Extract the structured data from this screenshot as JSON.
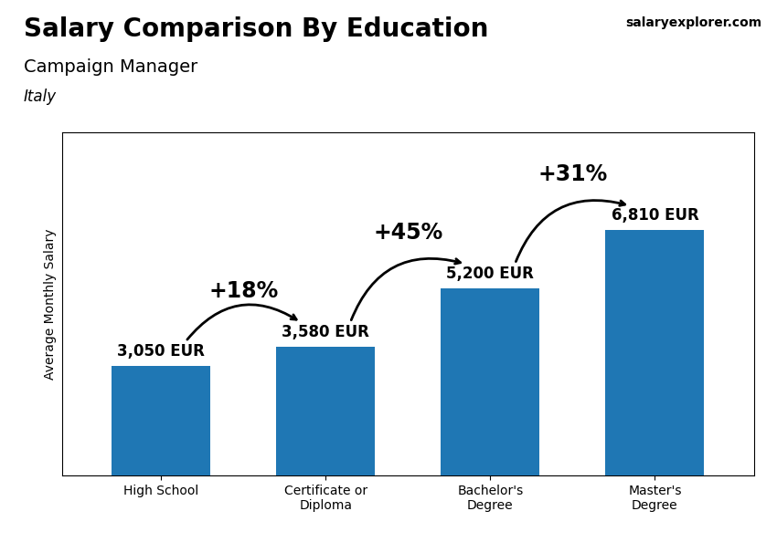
{
  "chart_data": {
    "type": "bar",
    "title": "Salary Comparison By Education",
    "subtitle": "Campaign Manager",
    "ylabel": "Average Monthly Salary",
    "categories": [
      "High School",
      "Certificate or\nDiploma",
      "Bachelor's\nDegree",
      "Master's\nDegree"
    ],
    "values": [
      3050,
      3580,
      5200,
      6810
    ],
    "value_labels": [
      "3,050 EUR",
      "3,580 EUR",
      "5,200 EUR",
      "6,810 EUR"
    ],
    "data_labels": true,
    "ylim": [
      0,
      9500
    ],
    "yticks": [],
    "tick_labels": "x",
    "annotations": [
      {
        "text": "Italy"
      },
      {
        "text": "salaryexplorer.com"
      },
      {
        "text": "+18%",
        "from": "High School",
        "to": "Certificate or\nDiploma"
      },
      {
        "text": "+45%",
        "from": "Certificate or\nDiploma",
        "to": "Bachelor's\nDegree"
      },
      {
        "text": "+31%",
        "from": "Bachelor's\nDegree",
        "to": "Master's\nDegree"
      }
    ]
  }
}
